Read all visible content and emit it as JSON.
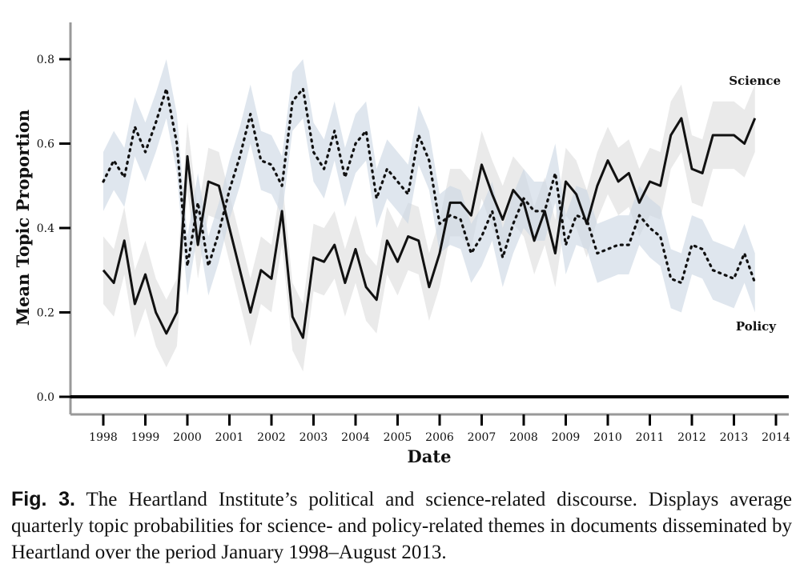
{
  "chart_data": {
    "type": "line",
    "title": "",
    "xlabel": "Date",
    "ylabel": "Mean Topic Proportion",
    "xlim": [
      1997.8,
      2014.1
    ],
    "ylim": [
      -0.04,
      0.88
    ],
    "xticks": [
      1998,
      1999,
      2000,
      2001,
      2002,
      2003,
      2004,
      2005,
      2006,
      2007,
      2008,
      2009,
      2010,
      2011,
      2012,
      2013,
      2014
    ],
    "xtick_labels": [
      "1998",
      "1999",
      "2000",
      "2001",
      "2002",
      "2003",
      "2004",
      "2005",
      "2006",
      "2007",
      "2008",
      "2009",
      "2010",
      "2011",
      "2012",
      "2013",
      "2014"
    ],
    "yticks": [
      0.0,
      0.2,
      0.4,
      0.6,
      0.8
    ],
    "ytick_labels": [
      "0.0",
      "0.2",
      "0.4",
      "0.6",
      "0.8"
    ],
    "x_start": 1998.0,
    "x_step": 0.25,
    "series": [
      {
        "name": "Science",
        "style": "solid",
        "color": "#111111",
        "band_color": "#dcdcdc",
        "band_halfwidth": 0.08,
        "values": [
          0.3,
          0.27,
          0.37,
          0.22,
          0.29,
          0.2,
          0.15,
          0.2,
          0.57,
          0.36,
          0.51,
          0.5,
          0.4,
          0.3,
          0.2,
          0.3,
          0.28,
          0.44,
          0.19,
          0.14,
          0.33,
          0.32,
          0.36,
          0.27,
          0.35,
          0.26,
          0.23,
          0.37,
          0.32,
          0.38,
          0.37,
          0.26,
          0.34,
          0.46,
          0.46,
          0.43,
          0.55,
          0.48,
          0.42,
          0.49,
          0.46,
          0.37,
          0.44,
          0.34,
          0.51,
          0.48,
          0.41,
          0.5,
          0.56,
          0.51,
          0.53,
          0.46,
          0.51,
          0.5,
          0.62,
          0.66,
          0.54,
          0.53,
          0.62,
          0.62,
          0.62,
          0.6,
          0.66
        ]
      },
      {
        "name": "Policy",
        "style": "dotted",
        "color": "#111111",
        "band_color": "#c9d6e3",
        "band_halfwidth": 0.07,
        "values": [
          0.51,
          0.56,
          0.52,
          0.64,
          0.58,
          0.65,
          0.73,
          0.6,
          0.31,
          0.46,
          0.31,
          0.39,
          0.49,
          0.57,
          0.67,
          0.56,
          0.55,
          0.5,
          0.7,
          0.73,
          0.58,
          0.54,
          0.63,
          0.52,
          0.6,
          0.63,
          0.47,
          0.54,
          0.51,
          0.48,
          0.62,
          0.56,
          0.41,
          0.43,
          0.42,
          0.34,
          0.38,
          0.44,
          0.33,
          0.41,
          0.47,
          0.44,
          0.44,
          0.53,
          0.36,
          0.43,
          0.42,
          0.34,
          0.35,
          0.36,
          0.36,
          0.43,
          0.4,
          0.38,
          0.28,
          0.27,
          0.36,
          0.35,
          0.3,
          0.29,
          0.28,
          0.34,
          0.27
        ]
      }
    ],
    "series_labels": {
      "science": "Science",
      "policy": "Policy"
    }
  },
  "caption": {
    "figure_number": "Fig. 3.",
    "text": "The Heartland Institute’s political and science-related discourse. Displays average quarterly topic probabilities for science- and policy-related themes in documents disseminated by Heartland over the period January 1998–August 2013."
  }
}
